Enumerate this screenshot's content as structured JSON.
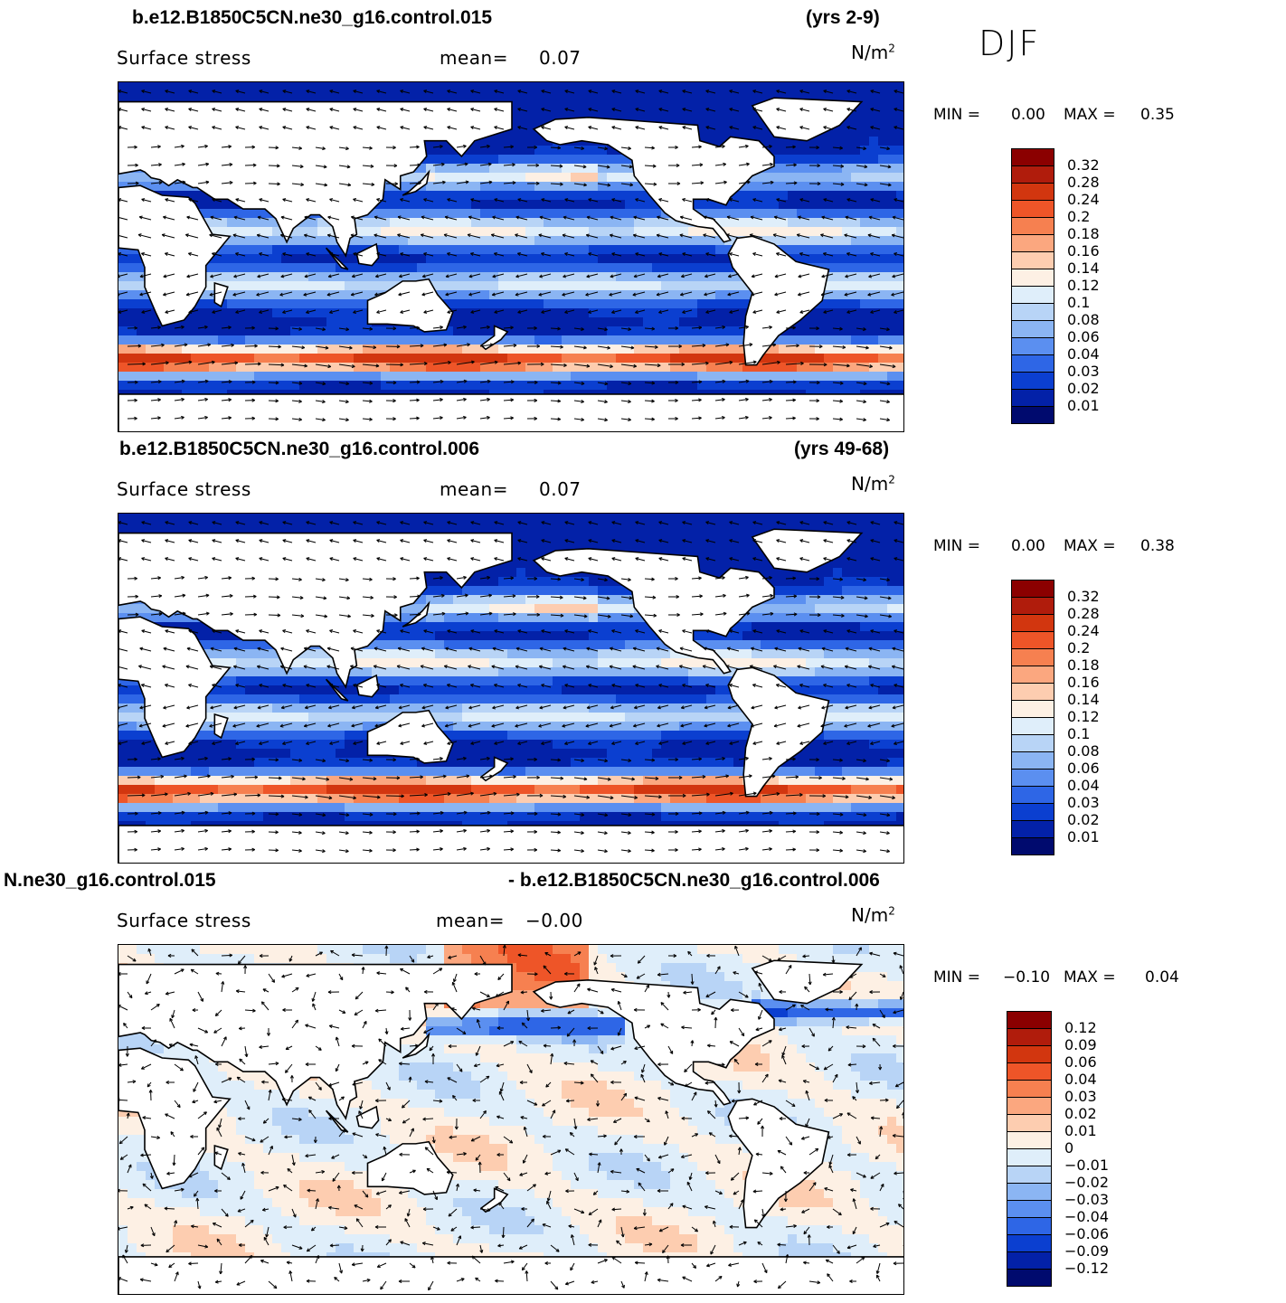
{
  "season": "DJF",
  "panels": [
    {
      "case_title": "b.e12.B1850C5CN.ne30_g16.control.015",
      "years": "(yrs 2-9)",
      "variable": "Surface stress",
      "mean_label": "mean=",
      "mean_value": "0.07",
      "units": "N/m",
      "units_sup": "2",
      "min_label": "MIN =",
      "min_value": "0.00",
      "max_label": "MAX =",
      "max_value": "0.35",
      "colorbar_labels": [
        "0.32",
        "0.28",
        "0.24",
        "0.2",
        "0.18",
        "0.16",
        "0.14",
        "0.12",
        "0.1",
        "0.08",
        "0.06",
        "0.04",
        "0.03",
        "0.02",
        "0.01"
      ],
      "colorbar_colors": [
        "#8b0000",
        "#b01c0c",
        "#d2360f",
        "#ee5528",
        "#f68050",
        "#fba77f",
        "#fdcdb0",
        "#fdf0e4",
        "#dfeefa",
        "#b8d4f6",
        "#8bb5f3",
        "#5b8ff0",
        "#2e66e6",
        "#0b3fd0",
        "#0321a8",
        "#000a6e"
      ],
      "field": "mean"
    },
    {
      "case_title": "b.e12.B1850C5CN.ne30_g16.control.006",
      "years": "(yrs 49-68)",
      "variable": "Surface stress",
      "mean_label": "mean=",
      "mean_value": "0.07",
      "units": "N/m",
      "units_sup": "2",
      "min_label": "MIN =",
      "min_value": "0.00",
      "max_label": "MAX =",
      "max_value": "0.38",
      "colorbar_labels": [
        "0.32",
        "0.28",
        "0.24",
        "0.2",
        "0.18",
        "0.16",
        "0.14",
        "0.12",
        "0.1",
        "0.08",
        "0.06",
        "0.04",
        "0.03",
        "0.02",
        "0.01"
      ],
      "colorbar_colors": [
        "#8b0000",
        "#b01c0c",
        "#d2360f",
        "#ee5528",
        "#f68050",
        "#fba77f",
        "#fdcdb0",
        "#fdf0e4",
        "#dfeefa",
        "#b8d4f6",
        "#8bb5f3",
        "#5b8ff0",
        "#2e66e6",
        "#0b3fd0",
        "#0321a8",
        "#000a6e"
      ],
      "field": "mean"
    },
    {
      "case_title": "N.ne30_g16.control.015",
      "years": "- b.e12.B1850C5CN.ne30_g16.control.006",
      "variable": "Surface stress",
      "mean_label": "mean=",
      "mean_value": "−0.00",
      "units": "N/m",
      "units_sup": "2",
      "min_label": "MIN =",
      "min_value": "−0.10",
      "max_label": "MAX =",
      "max_value": "0.04",
      "colorbar_labels": [
        "0.12",
        "0.09",
        "0.06",
        "0.04",
        "0.03",
        "0.02",
        "0.01",
        "0",
        "−0.01",
        "−0.02",
        "−0.03",
        "−0.04",
        "−0.06",
        "−0.09",
        "−0.12"
      ],
      "colorbar_colors": [
        "#8b0000",
        "#b01c0c",
        "#d2360f",
        "#ee5528",
        "#f68050",
        "#fba77f",
        "#fdcdb0",
        "#fdf0e4",
        "#dfeefa",
        "#b8d4f6",
        "#8bb5f3",
        "#5b8ff0",
        "#2e66e6",
        "#0b3fd0",
        "#0321a8",
        "#000a6e"
      ],
      "field": "diff"
    }
  ]
}
